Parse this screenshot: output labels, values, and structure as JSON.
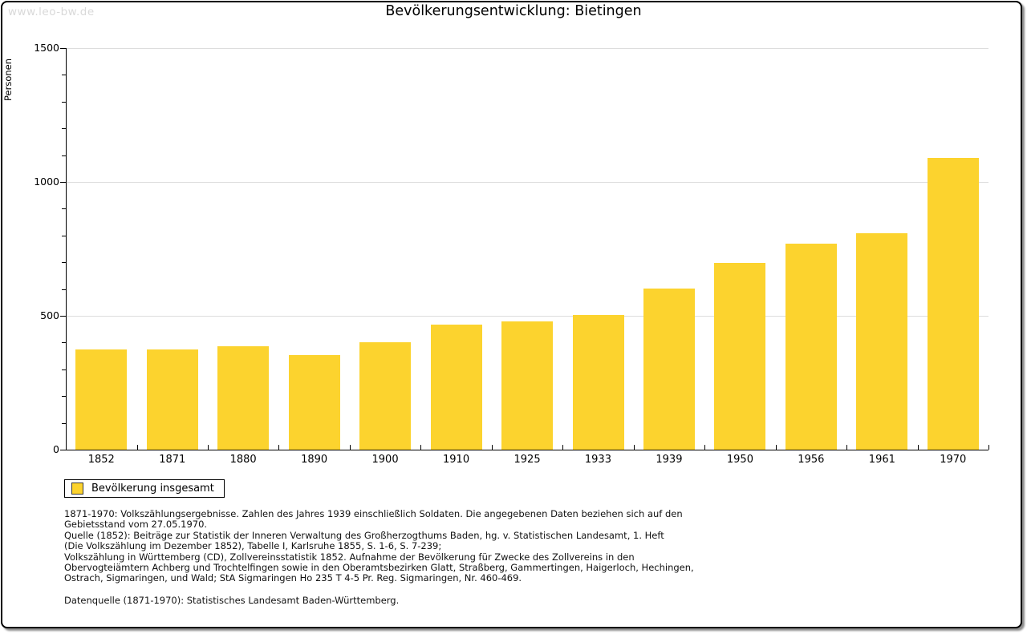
{
  "watermark": "www.leo-bw.de",
  "chart_data": {
    "type": "bar",
    "title": "Bevölkerungsentwicklung: Bietingen",
    "ylabel": "Personen",
    "xlabel": "",
    "categories": [
      "1852",
      "1871",
      "1880",
      "1890",
      "1900",
      "1910",
      "1925",
      "1933",
      "1939",
      "1950",
      "1956",
      "1961",
      "1970"
    ],
    "values": [
      373,
      374,
      386,
      352,
      400,
      466,
      479,
      503,
      602,
      699,
      771,
      810,
      1089
    ],
    "ylim": [
      0,
      1500
    ],
    "yticks_major": [
      0,
      500,
      1000,
      1500
    ],
    "ytick_minor_step": 100,
    "grid": "horizontal at major ticks",
    "bar_color": "#FCD32E",
    "axis_color": "#000000",
    "gridline_color": "#dddddd",
    "legend": {
      "label": "Bevölkerung insgesamt",
      "position": "below-chart-left",
      "boxed": true
    }
  },
  "footnotes": {
    "lines": [
      "1871-1970: Volkszählungsergebnisse. Zahlen des Jahres 1939 einschließlich Soldaten. Die angegebenen Daten beziehen sich auf den",
      "Gebietsstand vom 27.05.1970.",
      "Quelle (1852): Beiträge zur Statistik der Inneren Verwaltung des Großherzogthums Baden, hg. v. Statistischen Landesamt, 1. Heft",
      "(Die Volkszählung im Dezember 1852), Tabelle I, Karlsruhe 1855, S. 1-6, S. 7-239;",
      "Volkszählung in Württemberg (CD), Zollvereinsstatistik 1852. Aufnahme der Bevölkerung für Zwecke des Zollvereins in den",
      "Obervogteiämtern Achberg und Trochtelfingen sowie in den Oberamtsbezirken Glatt, Straßberg, Gammertingen, Haigerloch, Hechingen,",
      "Ostrach, Sigmaringen, und Wald; StA Sigmaringen Ho 235 T 4-5 Pr. Reg. Sigmaringen, Nr. 460-469."
    ]
  },
  "datasource": "Datenquelle (1871-1970): Statistisches Landesamt Baden-Württemberg."
}
